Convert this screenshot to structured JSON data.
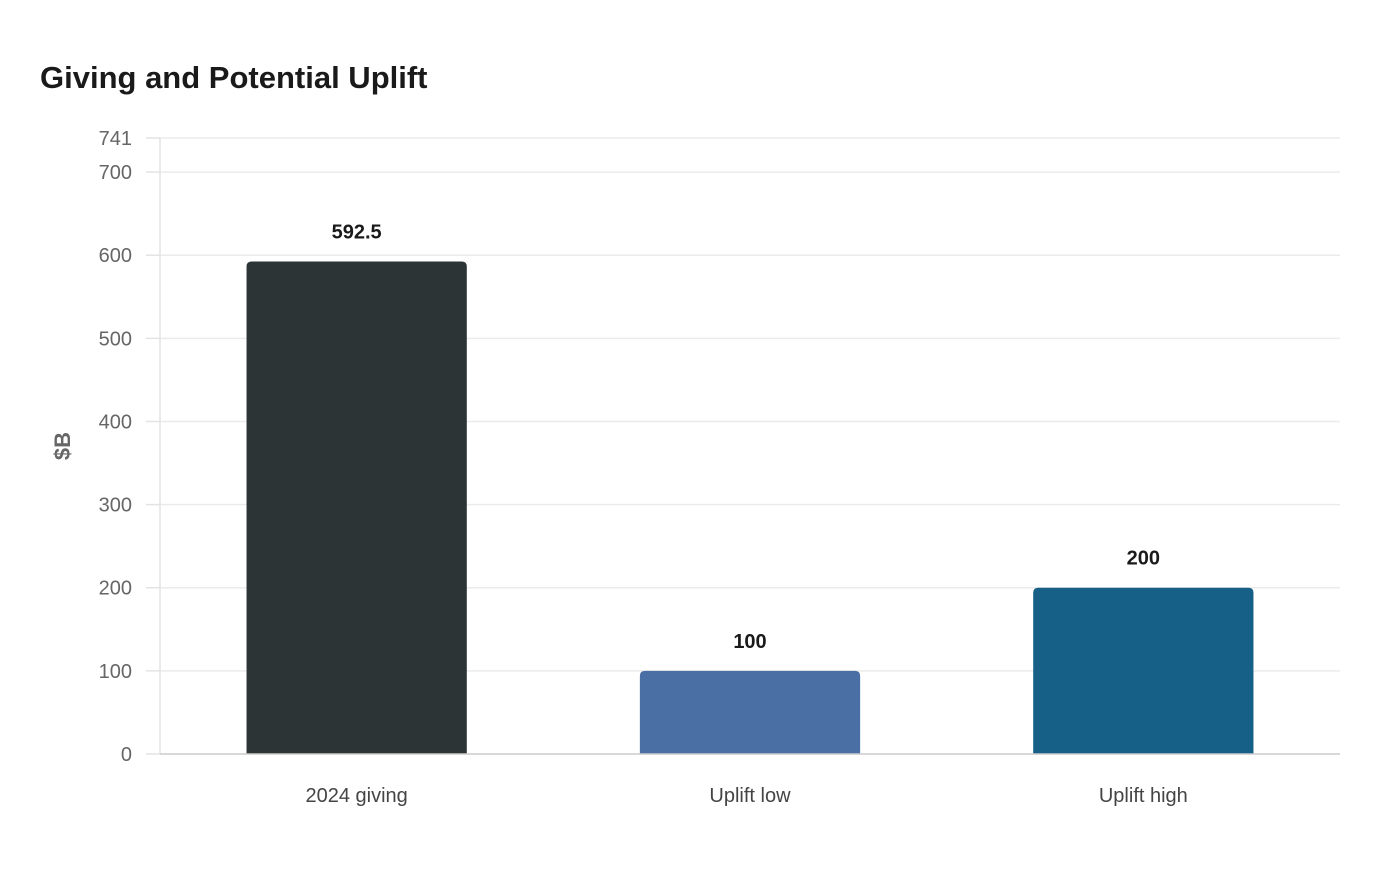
{
  "chart_data": {
    "type": "bar",
    "title": "Giving and Potential Uplift",
    "xlabel": "",
    "ylabel": "$B",
    "categories": [
      "2024 giving",
      "Uplift low",
      "Uplift high"
    ],
    "values": [
      592.5,
      100,
      200
    ],
    "data_labels": [
      "592.5",
      "100",
      "200"
    ],
    "colors": [
      "#2d3436",
      "#4a6fa5",
      "#166088"
    ],
    "ylim": [
      0,
      741
    ],
    "yticks": [
      0,
      100,
      200,
      300,
      400,
      500,
      600,
      700,
      741
    ],
    "grid": true,
    "legend": "none"
  }
}
